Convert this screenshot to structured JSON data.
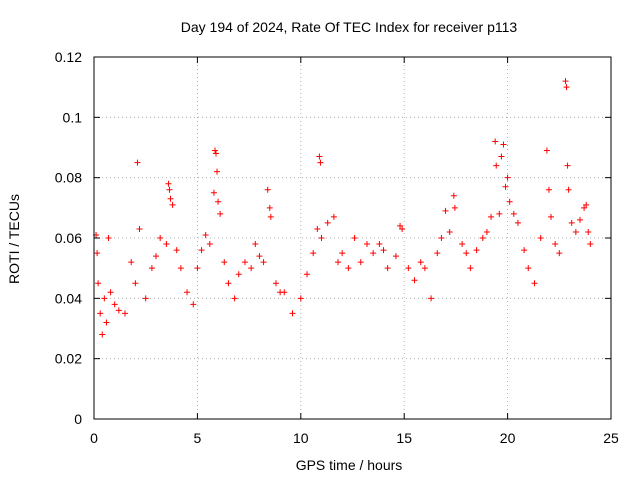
{
  "chart_data": {
    "type": "scatter",
    "title": "Day 194 of 2024, Rate Of TEC Index for receiver p113",
    "xlabel": "GPS time / hours",
    "ylabel": "ROTI / TECUs",
    "xlim": [
      0,
      25
    ],
    "ylim": [
      0,
      0.12
    ],
    "x_ticks": [
      0,
      5,
      10,
      15,
      20,
      25
    ],
    "y_ticks": [
      0,
      0.02,
      0.04,
      0.06,
      0.08,
      0.1,
      0.12
    ],
    "x_tick_labels": [
      "0",
      "5",
      "10",
      "15",
      "20",
      "25"
    ],
    "y_tick_labels": [
      "0",
      "0.02",
      "0.04",
      "0.06",
      "0.08",
      "0.1",
      "0.12"
    ],
    "grid": true,
    "marker": "plus",
    "color": "#ff0000",
    "series": [
      {
        "name": "",
        "points": [
          [
            0.1,
            0.061
          ],
          [
            0.15,
            0.055
          ],
          [
            0.2,
            0.045
          ],
          [
            0.3,
            0.035
          ],
          [
            0.4,
            0.028
          ],
          [
            0.5,
            0.04
          ],
          [
            0.6,
            0.032
          ],
          [
            0.7,
            0.06
          ],
          [
            0.8,
            0.042
          ],
          [
            1.0,
            0.038
          ],
          [
            1.2,
            0.036
          ],
          [
            1.5,
            0.035
          ],
          [
            1.8,
            0.052
          ],
          [
            2.0,
            0.045
          ],
          [
            2.1,
            0.085
          ],
          [
            2.2,
            0.063
          ],
          [
            2.5,
            0.04
          ],
          [
            2.8,
            0.05
          ],
          [
            3.0,
            0.054
          ],
          [
            3.2,
            0.06
          ],
          [
            3.5,
            0.058
          ],
          [
            3.6,
            0.078
          ],
          [
            3.65,
            0.076
          ],
          [
            3.7,
            0.073
          ],
          [
            3.8,
            0.071
          ],
          [
            4.0,
            0.056
          ],
          [
            4.2,
            0.05
          ],
          [
            4.5,
            0.042
          ],
          [
            4.8,
            0.038
          ],
          [
            5.0,
            0.05
          ],
          [
            5.2,
            0.056
          ],
          [
            5.4,
            0.061
          ],
          [
            5.6,
            0.058
          ],
          [
            5.8,
            0.075
          ],
          [
            5.85,
            0.089
          ],
          [
            5.9,
            0.088
          ],
          [
            5.95,
            0.082
          ],
          [
            6.0,
            0.072
          ],
          [
            6.1,
            0.068
          ],
          [
            6.3,
            0.052
          ],
          [
            6.5,
            0.045
          ],
          [
            6.8,
            0.04
          ],
          [
            7.0,
            0.048
          ],
          [
            7.3,
            0.052
          ],
          [
            7.6,
            0.05
          ],
          [
            7.8,
            0.058
          ],
          [
            8.0,
            0.054
          ],
          [
            8.2,
            0.052
          ],
          [
            8.4,
            0.076
          ],
          [
            8.5,
            0.07
          ],
          [
            8.55,
            0.067
          ],
          [
            8.8,
            0.045
          ],
          [
            9.0,
            0.042
          ],
          [
            9.2,
            0.042
          ],
          [
            9.6,
            0.035
          ],
          [
            10.0,
            0.04
          ],
          [
            10.3,
            0.048
          ],
          [
            10.6,
            0.055
          ],
          [
            10.8,
            0.063
          ],
          [
            10.9,
            0.087
          ],
          [
            10.95,
            0.085
          ],
          [
            11.0,
            0.06
          ],
          [
            11.3,
            0.065
          ],
          [
            11.6,
            0.067
          ],
          [
            11.8,
            0.052
          ],
          [
            12.0,
            0.055
          ],
          [
            12.3,
            0.05
          ],
          [
            12.6,
            0.06
          ],
          [
            12.9,
            0.052
          ],
          [
            13.2,
            0.058
          ],
          [
            13.5,
            0.055
          ],
          [
            13.8,
            0.058
          ],
          [
            14.0,
            0.056
          ],
          [
            14.2,
            0.05
          ],
          [
            14.6,
            0.054
          ],
          [
            14.8,
            0.064
          ],
          [
            14.9,
            0.063
          ],
          [
            15.2,
            0.05
          ],
          [
            15.5,
            0.046
          ],
          [
            15.8,
            0.052
          ],
          [
            16.0,
            0.05
          ],
          [
            16.3,
            0.04
          ],
          [
            16.6,
            0.055
          ],
          [
            16.8,
            0.06
          ],
          [
            17.0,
            0.069
          ],
          [
            17.2,
            0.062
          ],
          [
            17.4,
            0.074
          ],
          [
            17.45,
            0.07
          ],
          [
            17.8,
            0.058
          ],
          [
            18.0,
            0.055
          ],
          [
            18.2,
            0.05
          ],
          [
            18.5,
            0.056
          ],
          [
            18.8,
            0.06
          ],
          [
            19.0,
            0.062
          ],
          [
            19.2,
            0.067
          ],
          [
            19.4,
            0.092
          ],
          [
            19.45,
            0.084
          ],
          [
            19.6,
            0.068
          ],
          [
            19.7,
            0.087
          ],
          [
            19.8,
            0.091
          ],
          [
            19.9,
            0.077
          ],
          [
            20.0,
            0.08
          ],
          [
            20.1,
            0.072
          ],
          [
            20.3,
            0.068
          ],
          [
            20.5,
            0.065
          ],
          [
            20.8,
            0.056
          ],
          [
            21.0,
            0.05
          ],
          [
            21.3,
            0.045
          ],
          [
            21.6,
            0.06
          ],
          [
            21.9,
            0.089
          ],
          [
            22.0,
            0.076
          ],
          [
            22.1,
            0.067
          ],
          [
            22.3,
            0.058
          ],
          [
            22.5,
            0.055
          ],
          [
            22.8,
            0.112
          ],
          [
            22.85,
            0.11
          ],
          [
            22.9,
            0.084
          ],
          [
            22.95,
            0.076
          ],
          [
            23.1,
            0.065
          ],
          [
            23.3,
            0.062
          ],
          [
            23.5,
            0.066
          ],
          [
            23.7,
            0.07
          ],
          [
            23.8,
            0.071
          ],
          [
            23.9,
            0.062
          ],
          [
            24.0,
            0.058
          ]
        ]
      }
    ]
  }
}
